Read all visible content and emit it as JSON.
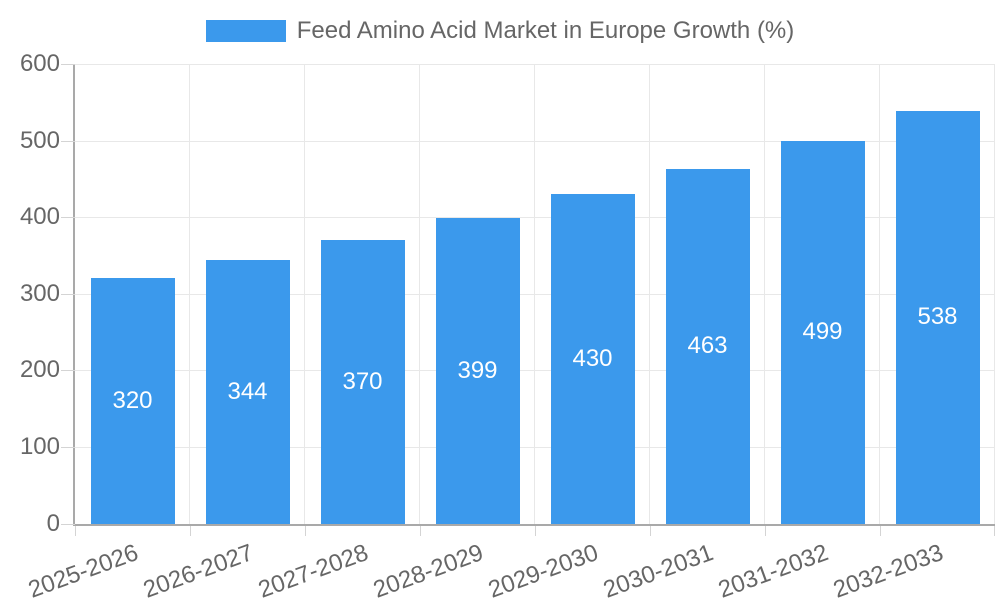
{
  "chart_data": {
    "type": "bar",
    "title": "Feed Amino Acid Market in Europe Growth (%)",
    "categories": [
      "2025-2026",
      "2026-2027",
      "2027-2028",
      "2028-2029",
      "2029-2030",
      "2030-2031",
      "2031-2032",
      "2032-2033"
    ],
    "values": [
      320,
      344,
      370,
      399,
      430,
      463,
      499,
      538
    ],
    "xlabel": "",
    "ylabel": "",
    "ylim": [
      0,
      600
    ],
    "yticks": [
      0,
      100,
      200,
      300,
      400,
      500,
      600
    ],
    "grid": true,
    "legend_position": "top",
    "bar_color": "#3B99EC",
    "value_label_color": "#FFFFFF",
    "axis_text_color": "#666666"
  }
}
